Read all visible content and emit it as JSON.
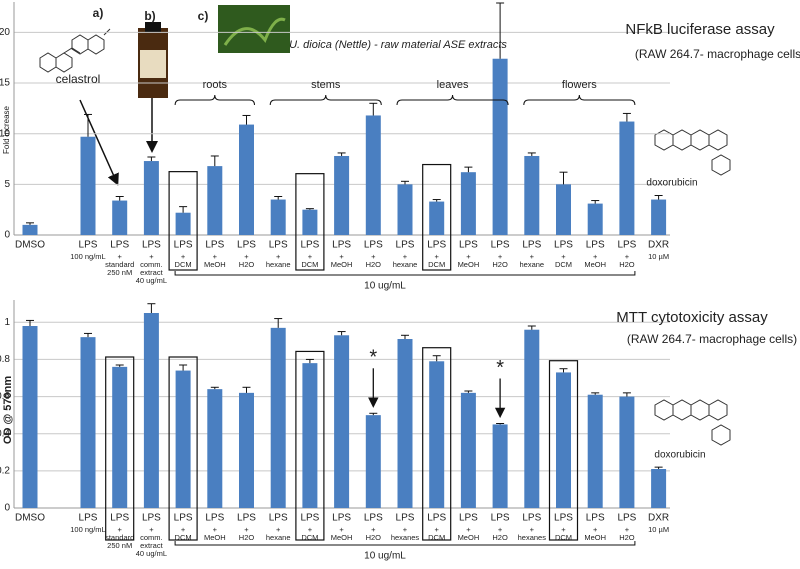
{
  "chart_data": [
    {
      "type": "bar",
      "title": "NFkB luciferase assay",
      "subtitle": "(RAW 264.7- macrophage cells)",
      "y_label": "Fold increase",
      "categories": [
        [
          "DMSO"
        ],
        [
          "LPS",
          "100 ng/mL"
        ],
        [
          "LPS",
          "+",
          "standard",
          "250 nM"
        ],
        [
          "LPS",
          "+",
          "comm.",
          "extract",
          "40 ug/mL"
        ],
        [
          "LPS",
          "+",
          "DCM"
        ],
        [
          "LPS",
          "+",
          "MeOH"
        ],
        [
          "LPS",
          "+",
          "H2O"
        ],
        [
          "LPS",
          "+",
          "hexane"
        ],
        [
          "LPS",
          "+",
          "DCM"
        ],
        [
          "LPS",
          "+",
          "MeOH"
        ],
        [
          "LPS",
          "+",
          "H2O"
        ],
        [
          "LPS",
          "+",
          "hexane"
        ],
        [
          "LPS",
          "+",
          "DCM"
        ],
        [
          "LPS",
          "+",
          "MeOH"
        ],
        [
          "LPS",
          "+",
          "H2O"
        ],
        [
          "LPS",
          "+",
          "hexane"
        ],
        [
          "LPS",
          "+",
          "DCM"
        ],
        [
          "LPS",
          "+",
          "MeOH"
        ],
        [
          "LPS",
          "+",
          "H2O"
        ],
        [
          "DXR",
          "10 µM"
        ]
      ],
      "values": [
        1.0,
        9.7,
        3.4,
        7.3,
        2.2,
        6.8,
        10.9,
        3.5,
        2.5,
        7.8,
        11.8,
        5.0,
        3.3,
        6.2,
        17.4,
        7.8,
        5.0,
        3.1,
        11.2,
        3.5
      ],
      "errors": [
        0.2,
        2.2,
        0.4,
        0.4,
        0.6,
        1.0,
        0.9,
        0.3,
        0.1,
        0.3,
        1.2,
        0.3,
        0.2,
        0.5,
        5.5,
        0.3,
        1.2,
        0.3,
        0.8,
        0.4
      ],
      "color": "#4a7fc1",
      "ylim": [
        0,
        23
      ],
      "yticks": [
        0,
        5,
        10,
        15,
        20
      ],
      "grid": true,
      "boxed": [
        4,
        8,
        12
      ],
      "groups": [
        {
          "label": "roots",
          "start": 4,
          "end": 6
        },
        {
          "label": "stems",
          "start": 7,
          "end": 10
        },
        {
          "label": "leaves",
          "start": 11,
          "end": 14
        },
        {
          "label": "flowers",
          "start": 15,
          "end": 18
        }
      ],
      "dose": {
        "label": "10 ug/mL",
        "start": 4,
        "end": 18
      },
      "annotations": [
        "a)",
        "b)",
        "c)",
        "celastrol",
        "U. dioica (Nettle) - raw material ASE extracts",
        "doxorubicin"
      ]
    },
    {
      "type": "bar",
      "title": "MTT cytotoxicity assay",
      "subtitle": "(RAW 264.7- macrophage cells)",
      "y_label": "OD @ 570nm",
      "categories": [
        [
          "DMSO"
        ],
        [
          "LPS",
          "100 ng/mL"
        ],
        [
          "LPS",
          "+",
          "standard",
          "250 nM"
        ],
        [
          "LPS",
          "+",
          "comm.",
          "extract",
          "40 ug/mL"
        ],
        [
          "LPS",
          "+",
          "DCM"
        ],
        [
          "LPS",
          "+",
          "MeOH"
        ],
        [
          "LPS",
          "+",
          "H2O"
        ],
        [
          "LPS",
          "+",
          "hexane"
        ],
        [
          "LPS",
          "+",
          "DCM"
        ],
        [
          "LPS",
          "+",
          "MeOH"
        ],
        [
          "LPS",
          "+",
          "H2O"
        ],
        [
          "LPS",
          "+",
          "hexanes"
        ],
        [
          "LPS",
          "+",
          "DCM"
        ],
        [
          "LPS",
          "+",
          "MeOH"
        ],
        [
          "LPS",
          "+",
          "H2O"
        ],
        [
          "LPS",
          "+",
          "hexanes"
        ],
        [
          "LPS",
          "+",
          "DCM"
        ],
        [
          "LPS",
          "+",
          "MeOH"
        ],
        [
          "LPS",
          "+",
          "H2O"
        ],
        [
          "DXR",
          "10 µM"
        ]
      ],
      "values": [
        0.98,
        0.92,
        0.76,
        1.05,
        0.74,
        0.64,
        0.62,
        0.97,
        0.78,
        0.93,
        0.5,
        0.91,
        0.79,
        0.62,
        0.45,
        0.96,
        0.73,
        0.61,
        0.6,
        0.21
      ],
      "errors": [
        0.03,
        0.02,
        0.01,
        0.05,
        0.03,
        0.01,
        0.03,
        0.05,
        0.02,
        0.02,
        0.01,
        0.02,
        0.03,
        0.01,
        0.005,
        0.02,
        0.02,
        0.01,
        0.02,
        0.01
      ],
      "color": "#4a7fc1",
      "ylim": [
        0,
        1.12
      ],
      "yticks": [
        0,
        0.2,
        0.4,
        0.6,
        0.8,
        1
      ],
      "grid": true,
      "boxed": [
        2,
        4,
        8,
        12,
        16
      ],
      "dose": {
        "label": "10 ug/mL",
        "start": 4,
        "end": 18
      },
      "annotations": [
        "*",
        "*",
        "doxorubicin"
      ]
    }
  ]
}
